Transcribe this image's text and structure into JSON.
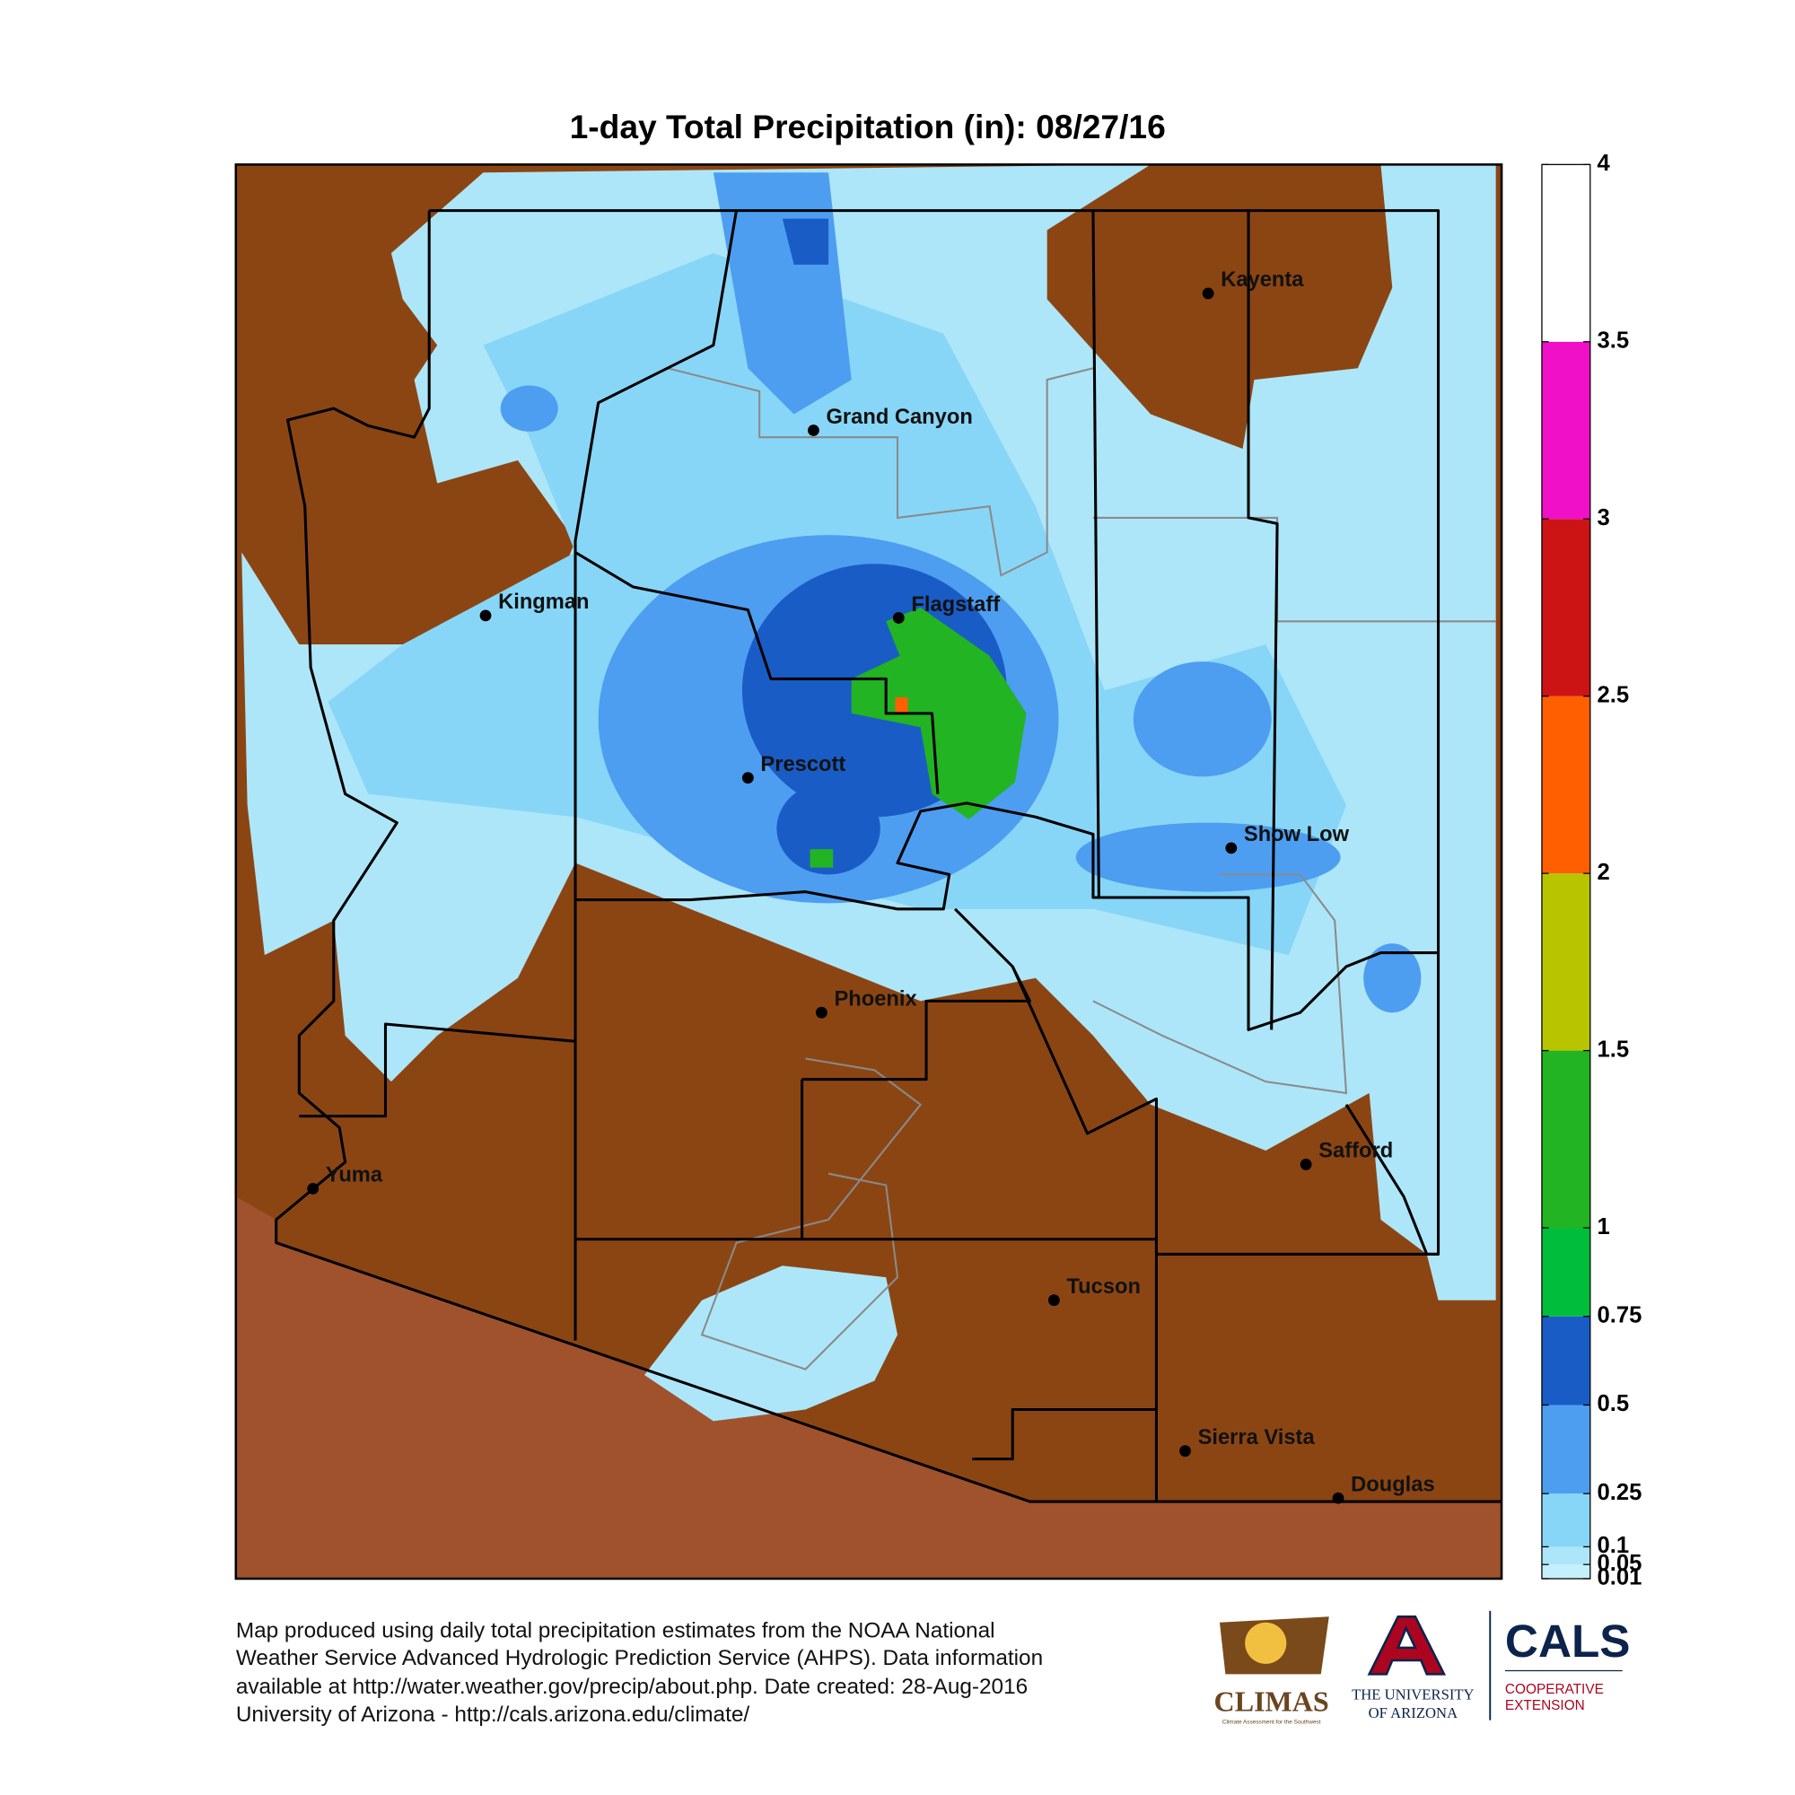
{
  "title": "1-day Total Precipitation (in): 08/27/16",
  "cities": [
    "Kayenta",
    "Grand Canyon",
    "Kingman",
    "Flagstaff",
    "Prescott",
    "Show Low",
    "Phoenix",
    "Yuma",
    "Safford",
    "Tucson",
    "Sierra Vista",
    "Douglas"
  ],
  "colorbar": {
    "lim": [
      0.01,
      4
    ],
    "ticks": [
      0.01,
      0.05,
      0.1,
      0.25,
      0.5,
      0.75,
      1,
      1.5,
      2,
      2.5,
      3,
      3.5,
      4
    ],
    "colors": [
      "#c4f0fc",
      "#ade6f9",
      "#88d6f7",
      "#4d9ef0",
      "#1a5cc6",
      "#00be3c",
      "#22b422",
      "#b8c400",
      "#ff5f00",
      "#cc1414",
      "#f010c8",
      "#ffffff"
    ]
  },
  "footer": [
    "Map produced using daily total precipitation estimates from the NOAA National",
    "Weather Service Advanced Hydrologic Prediction Service (AHPS). Data information",
    "available at http://water.weather.gov/precip/about.php. Date created: 28-Aug-2016",
    "University of Arizona - http://cals.arizona.edu/climate/"
  ],
  "logos": {
    "climas": "CLIMAS",
    "climas_sub": "Climate Assessment for the Southwest",
    "ua_1": "THE UNIVERSITY",
    "ua_2": "OF ARIZONA",
    "cals": "CALS",
    "cals_1": "COOPERATIVE",
    "cals_2": "EXTENSION"
  }
}
